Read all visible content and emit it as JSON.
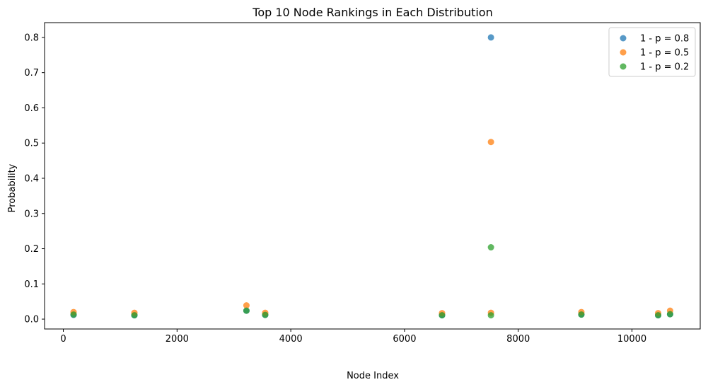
{
  "chart_data": {
    "type": "scatter",
    "title": "Top 10 Node Rankings in Each Distribution",
    "xlabel": "Node Index",
    "ylabel": "Probability",
    "xlim": [
      -330,
      11200
    ],
    "ylim": [
      -0.028,
      0.842
    ],
    "xticks": [
      0,
      2000,
      4000,
      6000,
      8000,
      10000
    ],
    "yticks": [
      0.0,
      0.1,
      0.2,
      0.3,
      0.4,
      0.5,
      0.6,
      0.7,
      0.8
    ],
    "grid": false,
    "legend_position": "top-right",
    "series": [
      {
        "name": "1 - p = 0.8",
        "color": "#1f77b4",
        "x": [
          180,
          1250,
          3220,
          3550,
          6660,
          7520,
          9110,
          10460,
          10670
        ],
        "y": [
          0.012,
          0.011,
          0.024,
          0.012,
          0.011,
          0.8,
          0.013,
          0.011,
          0.014
        ]
      },
      {
        "name": "1 - p = 0.5",
        "color": "#ff7f0e",
        "x": [
          180,
          1250,
          3220,
          3550,
          6660,
          7520,
          7520,
          9110,
          10460,
          10670
        ],
        "y": [
          0.02,
          0.018,
          0.039,
          0.018,
          0.017,
          0.503,
          0.018,
          0.02,
          0.017,
          0.024
        ]
      },
      {
        "name": "1 - p = 0.2",
        "color": "#2ca02c",
        "x": [
          180,
          1250,
          3220,
          3550,
          6660,
          7520,
          7520,
          9110,
          10460,
          10670
        ],
        "y": [
          0.013,
          0.011,
          0.024,
          0.012,
          0.011,
          0.204,
          0.011,
          0.013,
          0.011,
          0.014
        ]
      }
    ]
  }
}
